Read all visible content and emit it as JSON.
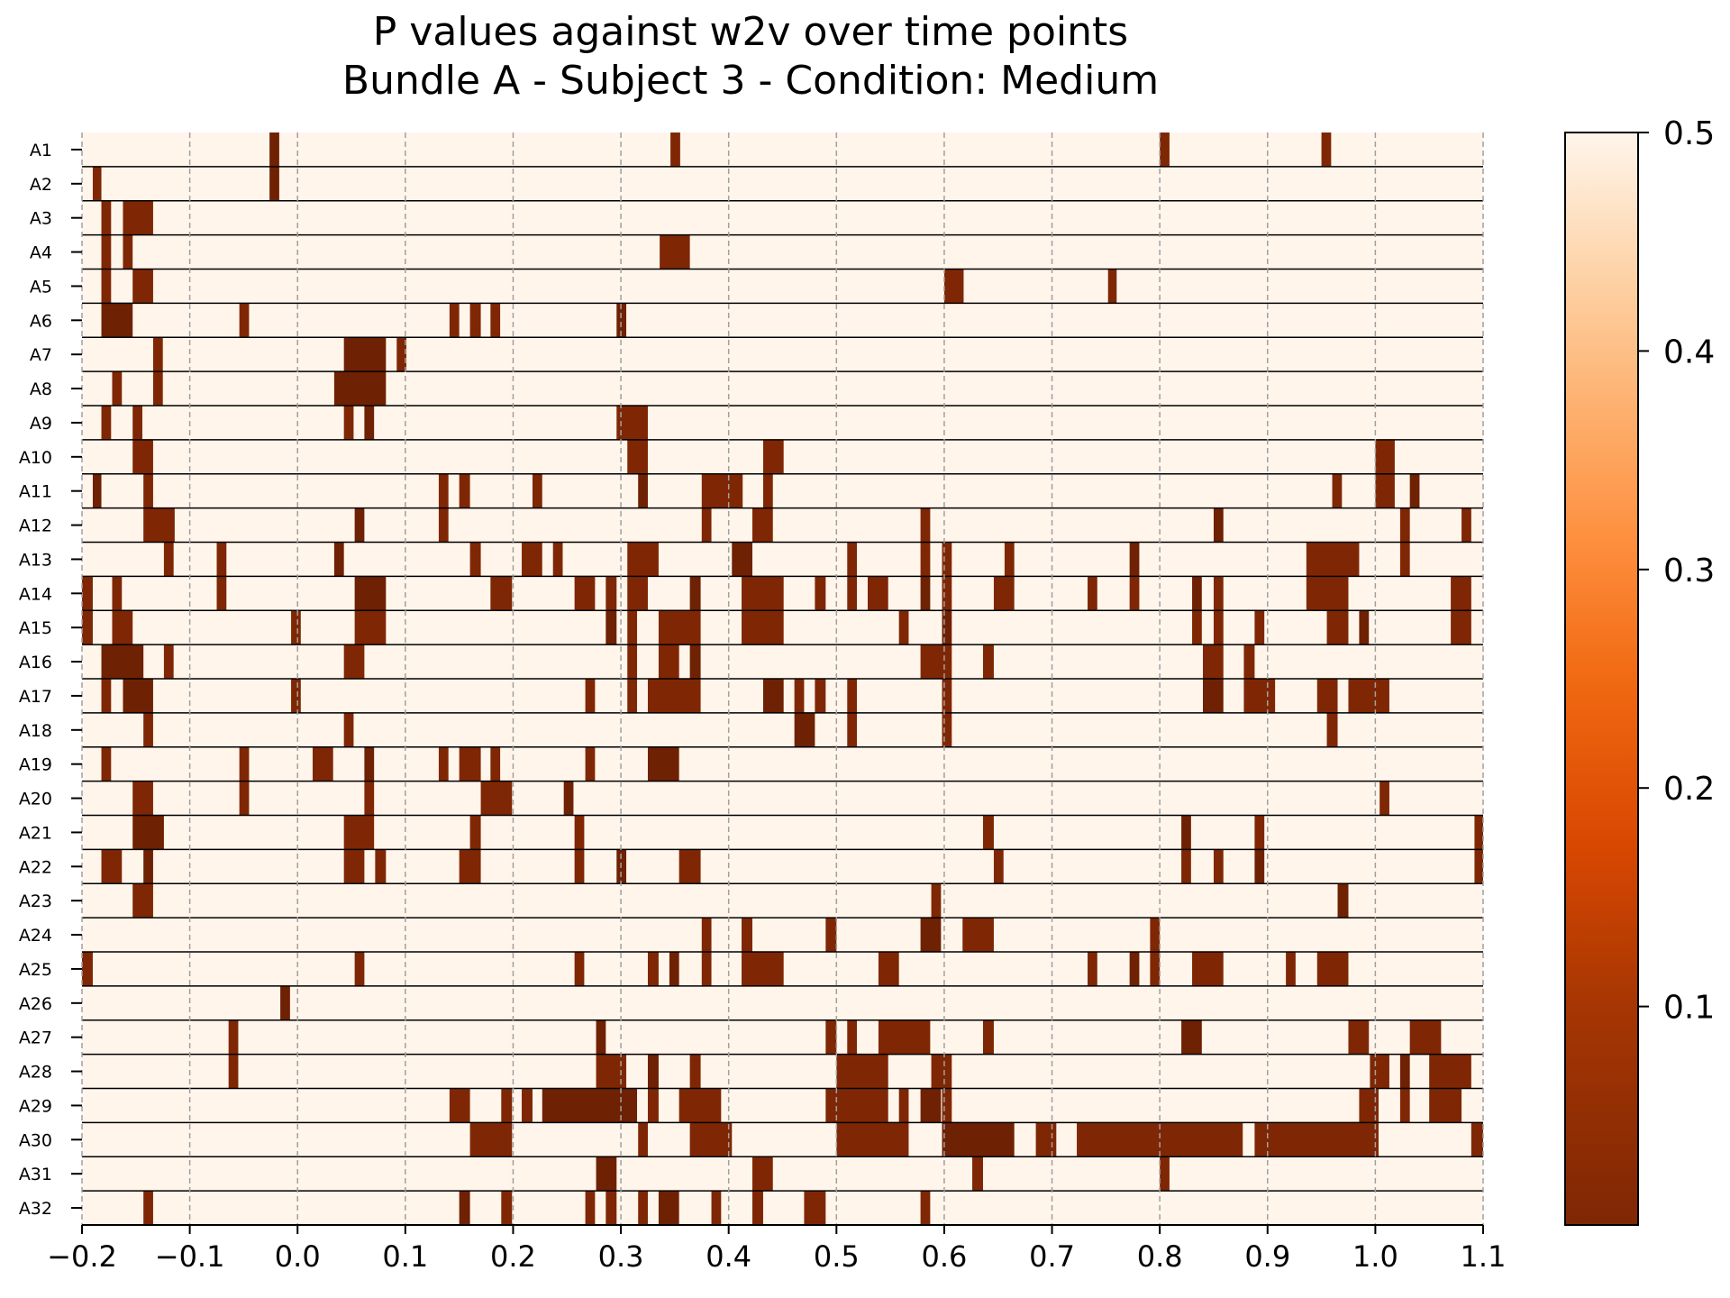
{
  "chart_data": {
    "type": "heatmap",
    "title": "P values against w2v over time points",
    "subtitle": "Bundle A - Subject 3 - Condition: Medium",
    "xlabel": "",
    "ylabel": "",
    "xlim": [
      -0.2,
      1.1
    ],
    "x_ticks": [
      "−0.2",
      "−0.1",
      "0.0",
      "0.1",
      "0.2",
      "0.3",
      "0.4",
      "0.5",
      "0.6",
      "0.7",
      "0.8",
      "0.9",
      "1.0",
      "1.1"
    ],
    "x_tick_values": [
      -0.2,
      -0.1,
      0.0,
      0.1,
      0.2,
      0.3,
      0.4,
      0.5,
      0.6,
      0.7,
      0.8,
      0.9,
      1.0,
      1.1
    ],
    "grid": "vertical dashed at x ticks",
    "colormap": "Oranges_r",
    "colorbar": {
      "range": [
        0.0,
        0.5
      ],
      "ticks": [
        "0.1",
        "0.2",
        "0.3",
        "0.4",
        "0.5"
      ],
      "tick_values": [
        0.1,
        0.2,
        0.3,
        0.4,
        0.5
      ],
      "placement": "right"
    },
    "background_value": 0.5,
    "rows": [
      {
        "label": "A1",
        "segments": [
          [
            -0.026,
            -0.017
          ],
          [
            0.346,
            0.355
          ],
          [
            0.8,
            0.809
          ],
          [
            0.95,
            0.959
          ]
        ]
      },
      {
        "label": "A2",
        "segments": [
          [
            -0.19,
            -0.182
          ],
          [
            -0.026,
            -0.017
          ]
        ]
      },
      {
        "label": "A3",
        "segments": [
          [
            -0.182,
            -0.173
          ],
          [
            -0.162,
            -0.134
          ]
        ]
      },
      {
        "label": "A4",
        "segments": [
          [
            -0.182,
            -0.173
          ],
          [
            -0.162,
            -0.153
          ],
          [
            0.336,
            0.364
          ]
        ]
      },
      {
        "label": "A5",
        "segments": [
          [
            -0.182,
            -0.173
          ],
          [
            -0.153,
            -0.134
          ],
          [
            0.6,
            0.618
          ],
          [
            0.752,
            0.76
          ]
        ]
      },
      {
        "label": "A6",
        "segments": [
          [
            -0.182,
            -0.153
          ],
          [
            -0.054,
            -0.045
          ],
          [
            0.141,
            0.15
          ],
          [
            0.16,
            0.17
          ],
          [
            0.179,
            0.188
          ],
          [
            0.296,
            0.305
          ]
        ]
      },
      {
        "label": "A7",
        "segments": [
          [
            -0.134,
            -0.125
          ],
          [
            0.043,
            0.082
          ],
          [
            0.092,
            0.101
          ]
        ]
      },
      {
        "label": "A8",
        "segments": [
          [
            -0.172,
            -0.163
          ],
          [
            -0.134,
            -0.125
          ],
          [
            0.034,
            0.082
          ]
        ]
      },
      {
        "label": "A9",
        "segments": [
          [
            -0.182,
            -0.173
          ],
          [
            -0.153,
            -0.144
          ],
          [
            0.043,
            0.052
          ],
          [
            0.062,
            0.071
          ],
          [
            0.296,
            0.325
          ]
        ]
      },
      {
        "label": "A10",
        "segments": [
          [
            -0.153,
            -0.134
          ],
          [
            0.306,
            0.325
          ],
          [
            0.432,
            0.451
          ],
          [
            1.0,
            1.018
          ]
        ]
      },
      {
        "label": "A11",
        "segments": [
          [
            -0.19,
            -0.182
          ],
          [
            -0.143,
            -0.134
          ],
          [
            0.131,
            0.14
          ],
          [
            0.15,
            0.16
          ],
          [
            0.218,
            0.227
          ],
          [
            0.316,
            0.325
          ],
          [
            0.375,
            0.413
          ],
          [
            0.432,
            0.441
          ],
          [
            0.96,
            0.969
          ],
          [
            1.0,
            1.018
          ],
          [
            1.032,
            1.041
          ]
        ]
      },
      {
        "label": "A12",
        "segments": [
          [
            -0.143,
            -0.114
          ],
          [
            0.053,
            0.062
          ],
          [
            0.131,
            0.14
          ],
          [
            0.375,
            0.384
          ],
          [
            0.422,
            0.441
          ],
          [
            0.578,
            0.587
          ],
          [
            0.85,
            0.859
          ],
          [
            1.023,
            1.032
          ],
          [
            1.08,
            1.089
          ]
        ]
      },
      {
        "label": "A13",
        "segments": [
          [
            -0.124,
            -0.115
          ],
          [
            -0.075,
            -0.066
          ],
          [
            0.034,
            0.043
          ],
          [
            0.16,
            0.17
          ],
          [
            0.208,
            0.227
          ],
          [
            0.237,
            0.246
          ],
          [
            0.306,
            0.335
          ],
          [
            0.403,
            0.422
          ],
          [
            0.51,
            0.519
          ],
          [
            0.578,
            0.587
          ],
          [
            0.598,
            0.607
          ],
          [
            0.656,
            0.665
          ],
          [
            0.772,
            0.781
          ],
          [
            0.936,
            0.985
          ],
          [
            1.023,
            1.032
          ]
        ]
      },
      {
        "label": "A14",
        "segments": [
          [
            -0.2,
            -0.19
          ],
          [
            -0.172,
            -0.163
          ],
          [
            -0.075,
            -0.066
          ],
          [
            0.053,
            0.082
          ],
          [
            0.179,
            0.199
          ],
          [
            0.257,
            0.276
          ],
          [
            0.286,
            0.296
          ],
          [
            0.306,
            0.325
          ],
          [
            0.364,
            0.374
          ],
          [
            0.412,
            0.451
          ],
          [
            0.48,
            0.49
          ],
          [
            0.51,
            0.519
          ],
          [
            0.529,
            0.548
          ],
          [
            0.578,
            0.587
          ],
          [
            0.598,
            0.607
          ],
          [
            0.646,
            0.665
          ],
          [
            0.733,
            0.742
          ],
          [
            0.772,
            0.781
          ],
          [
            0.83,
            0.839
          ],
          [
            0.85,
            0.859
          ],
          [
            0.936,
            0.975
          ],
          [
            1.07,
            1.089
          ]
        ]
      },
      {
        "label": "A15",
        "segments": [
          [
            -0.2,
            -0.19
          ],
          [
            -0.172,
            -0.153
          ],
          [
            -0.006,
            0.003
          ],
          [
            0.053,
            0.082
          ],
          [
            0.286,
            0.296
          ],
          [
            0.306,
            0.315
          ],
          [
            0.335,
            0.374
          ],
          [
            0.412,
            0.451
          ],
          [
            0.558,
            0.567
          ],
          [
            0.598,
            0.607
          ],
          [
            0.83,
            0.839
          ],
          [
            0.85,
            0.859
          ],
          [
            0.888,
            0.897
          ],
          [
            0.955,
            0.975
          ],
          [
            0.985,
            0.994
          ],
          [
            1.07,
            1.089
          ]
        ]
      },
      {
        "label": "A16",
        "segments": [
          [
            -0.182,
            -0.143
          ],
          [
            -0.124,
            -0.115
          ],
          [
            0.043,
            0.062
          ],
          [
            0.306,
            0.315
          ],
          [
            0.335,
            0.354
          ],
          [
            0.364,
            0.374
          ],
          [
            0.578,
            0.607
          ],
          [
            0.636,
            0.646
          ],
          [
            0.84,
            0.859
          ],
          [
            0.878,
            0.888
          ]
        ]
      },
      {
        "label": "A17",
        "segments": [
          [
            -0.182,
            -0.173
          ],
          [
            -0.162,
            -0.134
          ],
          [
            -0.006,
            0.003
          ],
          [
            0.267,
            0.276
          ],
          [
            0.306,
            0.315
          ],
          [
            0.325,
            0.374
          ],
          [
            0.432,
            0.451
          ],
          [
            0.461,
            0.47
          ],
          [
            0.48,
            0.49
          ],
          [
            0.51,
            0.519
          ],
          [
            0.598,
            0.607
          ],
          [
            0.84,
            0.859
          ],
          [
            0.878,
            0.907
          ],
          [
            0.946,
            0.965
          ],
          [
            0.975,
            1.013
          ]
        ]
      },
      {
        "label": "A18",
        "segments": [
          [
            -0.143,
            -0.134
          ],
          [
            0.043,
            0.052
          ],
          [
            0.461,
            0.48
          ],
          [
            0.51,
            0.519
          ],
          [
            0.598,
            0.607
          ],
          [
            0.955,
            0.965
          ]
        ]
      },
      {
        "label": "A19",
        "segments": [
          [
            -0.182,
            -0.173
          ],
          [
            -0.054,
            -0.045
          ],
          [
            0.014,
            0.033
          ],
          [
            0.062,
            0.071
          ],
          [
            0.131,
            0.14
          ],
          [
            0.15,
            0.17
          ],
          [
            0.179,
            0.188
          ],
          [
            0.267,
            0.276
          ],
          [
            0.325,
            0.354
          ]
        ]
      },
      {
        "label": "A20",
        "segments": [
          [
            -0.153,
            -0.134
          ],
          [
            -0.054,
            -0.045
          ],
          [
            0.062,
            0.071
          ],
          [
            0.17,
            0.199
          ],
          [
            0.247,
            0.256
          ],
          [
            1.004,
            1.013
          ]
        ]
      },
      {
        "label": "A21",
        "segments": [
          [
            -0.153,
            -0.124
          ],
          [
            0.043,
            0.071
          ],
          [
            0.16,
            0.17
          ],
          [
            0.257,
            0.266
          ],
          [
            0.636,
            0.646
          ],
          [
            0.82,
            0.829
          ],
          [
            0.888,
            0.897
          ],
          [
            1.092,
            1.1
          ]
        ]
      },
      {
        "label": "A22",
        "segments": [
          [
            -0.182,
            -0.163
          ],
          [
            -0.143,
            -0.134
          ],
          [
            0.043,
            0.062
          ],
          [
            0.072,
            0.082
          ],
          [
            0.15,
            0.17
          ],
          [
            0.257,
            0.266
          ],
          [
            0.296,
            0.305
          ],
          [
            0.354,
            0.374
          ],
          [
            0.646,
            0.655
          ],
          [
            0.82,
            0.829
          ],
          [
            0.85,
            0.859
          ],
          [
            0.888,
            0.897
          ],
          [
            1.092,
            1.1
          ]
        ]
      },
      {
        "label": "A23",
        "segments": [
          [
            -0.153,
            -0.134
          ],
          [
            0.588,
            0.597
          ],
          [
            0.965,
            0.975
          ]
        ]
      },
      {
        "label": "A24",
        "segments": [
          [
            0.375,
            0.384
          ],
          [
            0.412,
            0.422
          ],
          [
            0.49,
            0.5
          ],
          [
            0.578,
            0.597
          ],
          [
            0.617,
            0.646
          ],
          [
            0.791,
            0.8
          ]
        ]
      },
      {
        "label": "A25",
        "segments": [
          [
            -0.2,
            -0.19
          ],
          [
            0.053,
            0.062
          ],
          [
            0.257,
            0.266
          ],
          [
            0.325,
            0.335
          ],
          [
            0.345,
            0.354
          ],
          [
            0.375,
            0.384
          ],
          [
            0.412,
            0.451
          ],
          [
            0.539,
            0.558
          ],
          [
            0.733,
            0.742
          ],
          [
            0.772,
            0.781
          ],
          [
            0.791,
            0.8
          ],
          [
            0.83,
            0.859
          ],
          [
            0.917,
            0.926
          ],
          [
            0.946,
            0.975
          ]
        ]
      },
      {
        "label": "A26",
        "segments": [
          [
            -0.016,
            -0.007
          ]
        ]
      },
      {
        "label": "A27",
        "segments": [
          [
            -0.064,
            -0.055
          ],
          [
            0.277,
            0.286
          ],
          [
            0.49,
            0.5
          ],
          [
            0.51,
            0.519
          ],
          [
            0.539,
            0.587
          ],
          [
            0.636,
            0.646
          ],
          [
            0.82,
            0.839
          ],
          [
            0.975,
            0.994
          ],
          [
            1.032,
            1.061
          ]
        ]
      },
      {
        "label": "A28",
        "segments": [
          [
            -0.064,
            -0.055
          ],
          [
            0.277,
            0.305
          ],
          [
            0.325,
            0.335
          ],
          [
            0.364,
            0.374
          ],
          [
            0.5,
            0.548
          ],
          [
            0.588,
            0.607
          ],
          [
            0.995,
            1.013
          ],
          [
            1.023,
            1.032
          ],
          [
            1.05,
            1.089
          ]
        ]
      },
      {
        "label": "A29",
        "segments": [
          [
            0.141,
            0.16
          ],
          [
            0.189,
            0.199
          ],
          [
            0.208,
            0.218
          ],
          [
            0.227,
            0.315
          ],
          [
            0.325,
            0.335
          ],
          [
            0.354,
            0.393
          ],
          [
            0.49,
            0.548
          ],
          [
            0.558,
            0.567
          ],
          [
            0.578,
            0.597
          ],
          [
            0.598,
            0.607
          ],
          [
            0.985,
            1.003
          ],
          [
            1.023,
            1.032
          ],
          [
            1.05,
            1.08
          ]
        ]
      },
      {
        "label": "A30",
        "segments": [
          [
            0.16,
            0.199
          ],
          [
            0.316,
            0.325
          ],
          [
            0.364,
            0.403
          ],
          [
            0.5,
            0.567
          ],
          [
            0.598,
            0.665
          ],
          [
            0.685,
            0.704
          ],
          [
            0.723,
            0.877
          ],
          [
            0.888,
            1.003
          ],
          [
            1.089,
            1.1
          ]
        ]
      },
      {
        "label": "A31",
        "segments": [
          [
            0.277,
            0.296
          ],
          [
            0.422,
            0.441
          ],
          [
            0.626,
            0.636
          ],
          [
            0.8,
            0.809
          ]
        ]
      },
      {
        "label": "A32",
        "segments": [
          [
            -0.143,
            -0.134
          ],
          [
            0.15,
            0.16
          ],
          [
            0.189,
            0.199
          ],
          [
            0.267,
            0.276
          ],
          [
            0.286,
            0.296
          ],
          [
            0.316,
            0.325
          ],
          [
            0.335,
            0.354
          ],
          [
            0.384,
            0.393
          ],
          [
            0.422,
            0.432
          ],
          [
            0.47,
            0.49
          ],
          [
            0.578,
            0.587
          ]
        ]
      }
    ]
  }
}
